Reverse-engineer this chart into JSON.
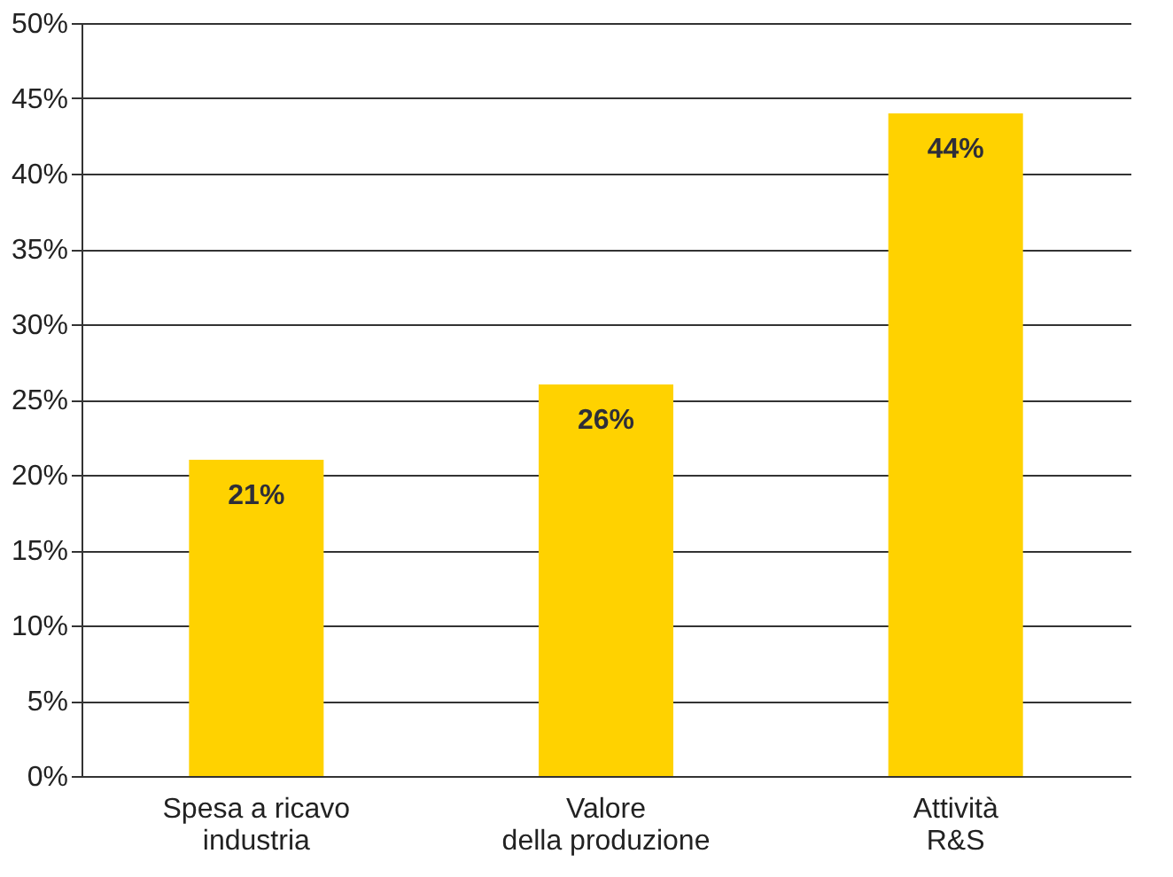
{
  "chart_data": {
    "type": "bar",
    "categories": [
      "Spesa a ricavo\nindustria",
      "Valore\ndella produzione",
      "Attività\nR&S"
    ],
    "values": [
      21,
      26,
      44
    ],
    "value_labels": [
      "21%",
      "26%",
      "44%"
    ],
    "color": "#ffd200",
    "ylim": [
      0,
      50
    ],
    "yticks": [
      {
        "value": 0,
        "label": "0%"
      },
      {
        "value": 5,
        "label": "5%"
      },
      {
        "value": 10,
        "label": "10%"
      },
      {
        "value": 15,
        "label": "15%"
      },
      {
        "value": 20,
        "label": "20%"
      },
      {
        "value": 25,
        "label": "25%"
      },
      {
        "value": 30,
        "label": "30%"
      },
      {
        "value": 35,
        "label": "35%"
      },
      {
        "value": 40,
        "label": "40%"
      },
      {
        "value": 45,
        "label": "45%"
      },
      {
        "value": 50,
        "label": "50%"
      }
    ],
    "grid": "y"
  }
}
